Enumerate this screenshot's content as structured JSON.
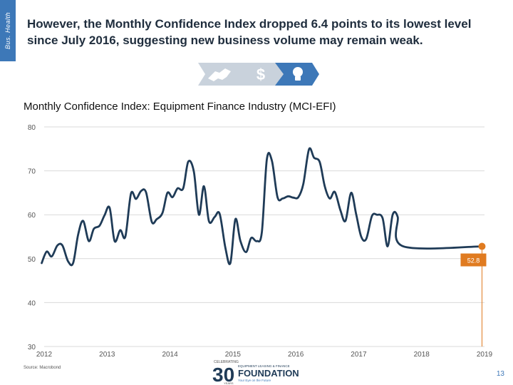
{
  "sidebar": {
    "label": "Bus. Health"
  },
  "header": {
    "title": "However, the Monthly Confidence Index dropped 6.4 points to its lowest level since July 2016, suggesting new business volume may remain weak."
  },
  "nav": {
    "items": [
      {
        "icon": "handshake-icon"
      },
      {
        "icon": "dollar-icon",
        "glyph": "$"
      },
      {
        "icon": "lightbulb-icon"
      }
    ]
  },
  "footer": {
    "source": "Source: Macrobond",
    "page_number": "13",
    "logo": {
      "line1": "CELEBRATING",
      "line2": "EQUIPMENT LEASING & FINANCE",
      "name": "FOUNDATION",
      "tagline": "Your Eye on the Future",
      "years": "YEARS",
      "big": "30"
    }
  },
  "colors": {
    "accent": "#3d78b8",
    "series": "#1f3b57",
    "highlight": "#e07b20",
    "grid": "#d9d9d9"
  },
  "chart_data": {
    "type": "line",
    "title": "Monthly Confidence Index: Equipment Finance Industry (MCI-EFI)",
    "xlabel": "",
    "ylabel": "",
    "ylim": [
      30,
      80
    ],
    "yticks": [
      "30",
      "40",
      "50",
      "60",
      "70",
      "80"
    ],
    "xticks": [
      {
        "label": "2012",
        "x": 2012.0
      },
      {
        "label": "2013",
        "x": 2013.0
      },
      {
        "label": "2014",
        "x": 2014.0
      },
      {
        "label": "2015",
        "x": 2015.0
      },
      {
        "label": "2016",
        "x": 2016.0
      },
      {
        "label": "2017",
        "x": 2017.0
      },
      {
        "label": "2018",
        "x": 2018.0
      },
      {
        "label": "2019",
        "x": 2019.0
      }
    ],
    "xlim": [
      2012.0,
      2019.0
    ],
    "series": [
      {
        "name": "MCI-EFI",
        "x": [
          2011.96,
          2012.04,
          2012.12,
          2012.21,
          2012.29,
          2012.38,
          2012.46,
          2012.54,
          2012.62,
          2012.71,
          2012.79,
          2012.88,
          2012.96,
          2013.04,
          2013.12,
          2013.21,
          2013.29,
          2013.38,
          2013.46,
          2013.54,
          2013.62,
          2013.71,
          2013.79,
          2013.88,
          2013.96,
          2014.04,
          2014.12,
          2014.21,
          2014.29,
          2014.38,
          2014.46,
          2014.54,
          2014.62,
          2014.71,
          2014.79,
          2014.88,
          2014.96,
          2015.04,
          2015.12,
          2015.21,
          2015.29,
          2015.38,
          2015.46,
          2015.54,
          2015.62,
          2015.71,
          2015.79,
          2015.88,
          2015.96,
          2016.04,
          2016.12,
          2016.21,
          2016.29,
          2016.38,
          2016.46,
          2016.54,
          2016.62,
          2016.71,
          2016.79,
          2016.88,
          2016.96,
          2017.04,
          2017.12,
          2017.21,
          2017.29,
          2017.38,
          2017.46,
          2017.54,
          2017.62,
          2017.71,
          2017.79,
          2017.88,
          2017.96,
          2018.04,
          2018.12,
          2018.21,
          2018.29,
          2018.38,
          2018.46,
          2018.54,
          2018.62,
          2018.71,
          2018.79,
          2018.88,
          2018.96
        ],
        "values": [
          49.0,
          51.6,
          50.5,
          53.0,
          53.0,
          49.4,
          49.0,
          55.5,
          58.6,
          54.0,
          56.8,
          57.5,
          59.9,
          61.6,
          54.0,
          56.5,
          55.0,
          64.8,
          63.6,
          65.4,
          65.1,
          58.4,
          59.0,
          60.4,
          65.0,
          64.0,
          66.0,
          66.0,
          72.1,
          69.8,
          60.0,
          66.5,
          58.5,
          59.5,
          60.2,
          52.5,
          49.0,
          59.0,
          54.0,
          51.5,
          54.7,
          54.0,
          56.0,
          72.6,
          72.3,
          64.0,
          63.7,
          64.2,
          63.9,
          64.0,
          67.0,
          74.9,
          73.0,
          72.0,
          66.5,
          63.7,
          65.2,
          61.0,
          58.6,
          65.0,
          60.1,
          55.0,
          54.5,
          59.7,
          60.0,
          59.2,
          52.8,
          60.0,
          59.5,
          52.8,
          52.8,
          52.8,
          52.8,
          52.8,
          52.8,
          52.8,
          52.8,
          52.8,
          52.8,
          52.8,
          52.8,
          52.8,
          52.8,
          52.8,
          52.8
        ]
      }
    ],
    "annotation": {
      "label": "52.8",
      "x": 2018.96,
      "value": 52.8
    }
  }
}
